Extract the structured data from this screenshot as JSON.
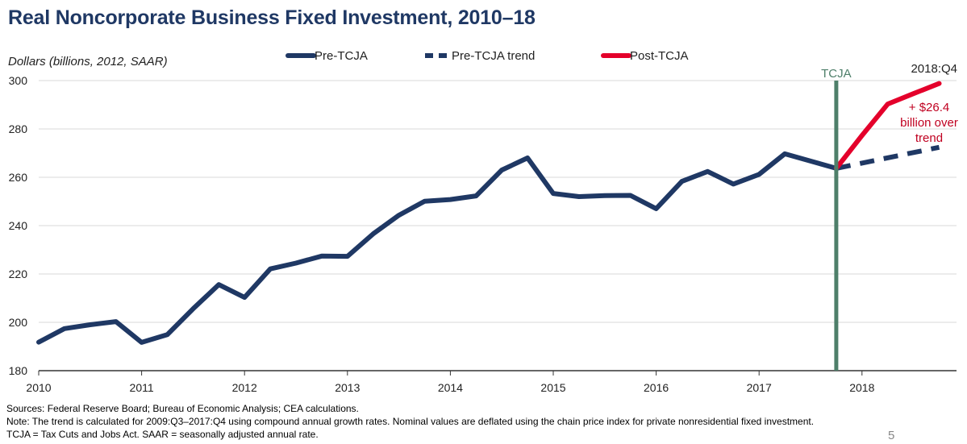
{
  "title": "Real Noncorporate Business Fixed Investment, 2010–18",
  "page_number": "5",
  "notes": {
    "sources": "Sources: Federal Reserve Board; Bureau of Economic Analysis; CEA calculations.",
    "note": "Note: The trend is calculated for 2009:Q3–2017:Q4 using compound annual growth rates. Nominal values are deflated using the chain price index for private nonresidential fixed investment.",
    "defs": "TCJA = Tax Cuts and Jobs Act. SAAR = seasonally adjusted annual rate."
  },
  "colors": {
    "pre": "#1f3864",
    "post": "#e4002b",
    "tcja": "#4e7f6a",
    "grid": "#d9d9d9",
    "annotation": "#c00020"
  },
  "chart_data": {
    "type": "line",
    "title": "Real Noncorporate Business Fixed Investment, 2010–18",
    "ylabel": "Dollars (billions, 2012, SAAR)",
    "xlabel": "",
    "ylim": [
      180,
      300
    ],
    "yticks": [
      180,
      200,
      220,
      240,
      260,
      280,
      300
    ],
    "xlim": [
      2010,
      2019
    ],
    "xticks": [
      2010,
      2011,
      2012,
      2013,
      2014,
      2015,
      2016,
      2017,
      2018
    ],
    "grid": true,
    "legend_position": "top",
    "series": [
      {
        "name": "Pre-TCJA",
        "style": "solid",
        "color": "#1f3864",
        "x": [
          "2010:Q1",
          "2010:Q2",
          "2010:Q3",
          "2010:Q4",
          "2011:Q1",
          "2011:Q2",
          "2011:Q3",
          "2011:Q4",
          "2012:Q1",
          "2012:Q2",
          "2012:Q3",
          "2012:Q4",
          "2013:Q1",
          "2013:Q2",
          "2013:Q3",
          "2013:Q4",
          "2014:Q1",
          "2014:Q2",
          "2014:Q3",
          "2014:Q4",
          "2015:Q1",
          "2015:Q2",
          "2015:Q3",
          "2015:Q4",
          "2016:Q1",
          "2016:Q2",
          "2016:Q3",
          "2016:Q4",
          "2017:Q1",
          "2017:Q2",
          "2017:Q3",
          "2017:Q4"
        ],
        "values": [
          191.8,
          197.4,
          199.0,
          200.3,
          191.7,
          194.9,
          205.6,
          215.6,
          210.3,
          222.1,
          224.5,
          227.4,
          227.3,
          236.6,
          244.3,
          250.1,
          250.8,
          252.3,
          263.0,
          268.0,
          253.3,
          252.0,
          252.4,
          252.5,
          247.0,
          258.3,
          262.4,
          257.2,
          261.2,
          269.7,
          266.7,
          263.7
        ]
      },
      {
        "name": "Pre-TCJA trend",
        "style": "dashed",
        "color": "#1f3864",
        "x": [
          "2017:Q4",
          "2018:Q4"
        ],
        "values": [
          263.7,
          272.4
        ]
      },
      {
        "name": "Post-TCJA",
        "style": "solid",
        "color": "#e4002b",
        "x": [
          "2017:Q4",
          "2018:Q1",
          "2018:Q2",
          "2018:Q3",
          "2018:Q4"
        ],
        "values": [
          263.7,
          277.3,
          290.3,
          294.6,
          298.8
        ]
      }
    ],
    "annotations": {
      "vline_label": "TCJA",
      "vline_at": "2017:Q4",
      "end_label": "2018:Q4",
      "gap_label_lines": [
        "+ $26.4",
        "billion over",
        "trend"
      ]
    }
  }
}
